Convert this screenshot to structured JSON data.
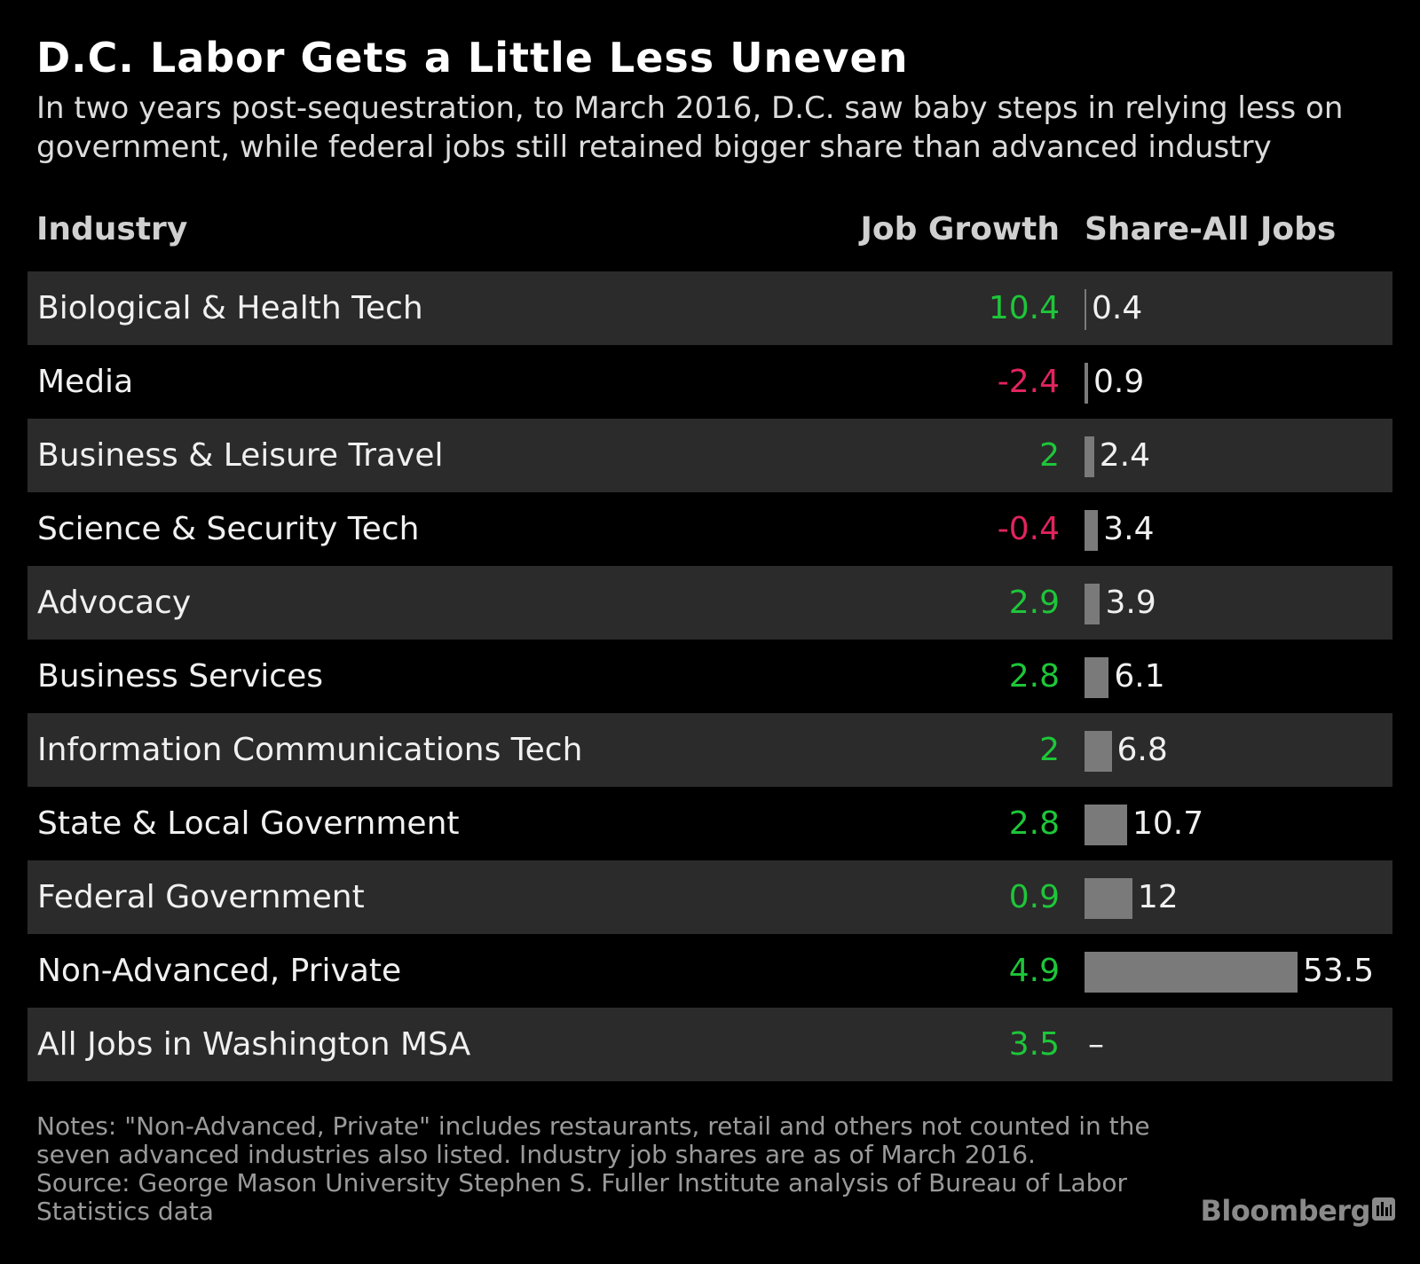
{
  "title": "D.C. Labor Gets a Little Less Uneven",
  "subtitle": "In two years post-sequestration, to March 2016, D.C. saw baby steps in relying less on government, while federal jobs still retained bigger share than advanced industry",
  "headers": {
    "industry": "Industry",
    "growth": "Job Growth",
    "share": "Share-All Jobs"
  },
  "colors": {
    "positive": "#1ec639",
    "negative": "#e0245e",
    "bar": "#7a7a7a",
    "row_shade": "#2b2b2b",
    "background": "#000000"
  },
  "chart_data": {
    "type": "table",
    "columns": [
      "Industry",
      "Job Growth",
      "Share-All Jobs"
    ],
    "bar_column": "Share-All Jobs",
    "bar_max": 53.5,
    "rows": [
      {
        "industry": "Biological & Health Tech",
        "growth": "10.4",
        "share": "0.4"
      },
      {
        "industry": "Media",
        "growth": "-2.4",
        "share": "0.9"
      },
      {
        "industry": "Business & Leisure Travel",
        "growth": "2",
        "share": "2.4"
      },
      {
        "industry": "Science & Security Tech",
        "growth": "-0.4",
        "share": "3.4"
      },
      {
        "industry": "Advocacy",
        "growth": "2.9",
        "share": "3.9"
      },
      {
        "industry": "Business Services",
        "growth": "2.8",
        "share": "6.1"
      },
      {
        "industry": "Information Communications Tech",
        "growth": "2",
        "share": "6.8"
      },
      {
        "industry": "State & Local Government",
        "growth": "2.8",
        "share": "10.7"
      },
      {
        "industry": "Federal Government",
        "growth": "0.9",
        "share": "12"
      },
      {
        "industry": "Non-Advanced, Private",
        "growth": "4.9",
        "share": "53.5"
      },
      {
        "industry": "All Jobs in Washington MSA",
        "growth": "3.5",
        "share": "–"
      }
    ]
  },
  "notes": {
    "line1": "Notes: \"Non-Advanced, Private\" includes restaurants, retail and others not counted in the",
    "line2": "seven advanced industries also listed. Industry job shares are as of March 2016.",
    "line3": "Source: George Mason University Stephen S. Fuller Institute analysis of Bureau of Labor",
    "line4": "Statistics data"
  },
  "brand": "Bloomberg",
  "brand_icon": "bloomberg-bars-icon"
}
